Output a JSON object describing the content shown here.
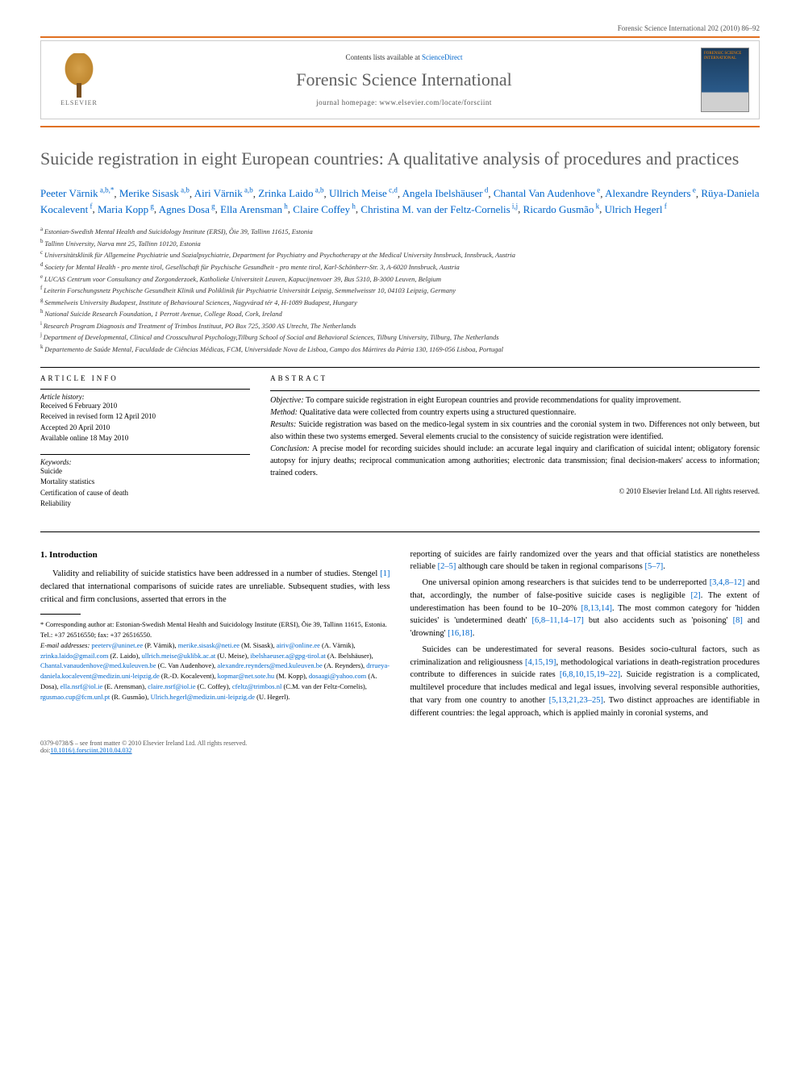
{
  "header_line": "Forensic Science International 202 (2010) 86–92",
  "banner": {
    "elsevier_name": "ELSEVIER",
    "contents_prefix": "Contents lists available at ",
    "contents_link": "ScienceDirect",
    "journal_name": "Forensic Science International",
    "homepage_label": "journal homepage: www.elsevier.com/locate/forsciint",
    "cover_text": "FORENSIC SCIENCE INTERNATIONAL"
  },
  "title": "Suicide registration in eight European countries: A qualitative analysis of procedures and practices",
  "authors": [
    {
      "name": "Peeter Värnik",
      "aff": "a,b,",
      "corr": "*"
    },
    {
      "name": "Merike Sisask",
      "aff": "a,b"
    },
    {
      "name": "Airi Värnik",
      "aff": "a,b"
    },
    {
      "name": "Zrinka Laido",
      "aff": "a,b"
    },
    {
      "name": "Ullrich Meise",
      "aff": "c,d"
    },
    {
      "name": "Angela Ibelshäuser",
      "aff": "d"
    },
    {
      "name": "Chantal Van Audenhove",
      "aff": "e"
    },
    {
      "name": "Alexandre Reynders",
      "aff": "e"
    },
    {
      "name": "Rüya-Daniela Kocalevent",
      "aff": "f"
    },
    {
      "name": "Maria Kopp",
      "aff": "g"
    },
    {
      "name": "Agnes Dosa",
      "aff": "g"
    },
    {
      "name": "Ella Arensman",
      "aff": "h"
    },
    {
      "name": "Claire Coffey",
      "aff": "h"
    },
    {
      "name": "Christina M. van der Feltz-Cornelis",
      "aff": "i,j"
    },
    {
      "name": "Ricardo Gusmão",
      "aff": "k"
    },
    {
      "name": "Ulrich Hegerl",
      "aff": "f"
    }
  ],
  "affiliations": [
    {
      "sup": "a",
      "text": "Estonian-Swedish Mental Health and Suicidology Institute (ERSI), Õie 39, Tallinn 11615, Estonia"
    },
    {
      "sup": "b",
      "text": "Tallinn University, Narva mnt 25, Tallinn 10120, Estonia"
    },
    {
      "sup": "c",
      "text": "Universitätsklinik für Allgemeine Psychiatrie und Sozialpsychiatrie, Department for Psychiatry and Psychotherapy at the Medical University Innsbruck, Innsbruck, Austria"
    },
    {
      "sup": "d",
      "text": "Society for Mental Health - pro mente tirol, Gesellschaft für Psychische Gesundheit - pro mente tirol, Karl-Schönherr-Str. 3, A-6020 Innsbruck, Austria"
    },
    {
      "sup": "e",
      "text": "LUCAS Centrum voor Consultancy and Zorgonderzoek, Katholieke Universiteit Leuven, Kapucijnenvoer 39, Bus 5310, B-3000 Leuven, Belgium"
    },
    {
      "sup": "f",
      "text": "Leiterin Forschungsnetz Psychische Gesundheit Klinik und Poliklinik für Psychiatrie Universität Leipzig, Semmelweisstr 10, 04103 Leipzig, Germany"
    },
    {
      "sup": "g",
      "text": "Semmelweis University Budapest, Institute of Behavioural Sciences, Nagyvárad tér 4, H-1089 Budapest, Hungary"
    },
    {
      "sup": "h",
      "text": "National Suicide Research Foundation, 1 Perrott Avenue, College Road, Cork, Ireland"
    },
    {
      "sup": "i",
      "text": "Research Program Diagnosis and Treatment of Trimbos Instituut, PO Box 725, 3500 AS Utrecht, The Netherlands"
    },
    {
      "sup": "j",
      "text": "Department of Developmental, Clinical and Crosscultural Psychology,Tilburg School of Social and Behavioral Sciences, Tilburg University, Tilburg, The Netherlands"
    },
    {
      "sup": "k",
      "text": "Departemento de Saúde Mental, Faculdade de Ciências Médicas, FCM, Universidade Nova de Lisboa, Campo dos Mártires da Pátria 130, 1169-056 Lisboa, Portugal"
    }
  ],
  "article_info": {
    "heading": "ARTICLE INFO",
    "history_label": "Article history:",
    "history": [
      "Received 6 February 2010",
      "Received in revised form 12 April 2010",
      "Accepted 20 April 2010",
      "Available online 18 May 2010"
    ],
    "keywords_label": "Keywords:",
    "keywords": [
      "Suicide",
      "Mortality statistics",
      "Certification of cause of death",
      "Reliability"
    ]
  },
  "abstract": {
    "heading": "ABSTRACT",
    "parts": [
      {
        "label": "Objective:",
        "text": " To compare suicide registration in eight European countries and provide recommendations for quality improvement."
      },
      {
        "label": "Method:",
        "text": " Qualitative data were collected from country experts using a structured questionnaire."
      },
      {
        "label": "Results:",
        "text": " Suicide registration was based on the medico-legal system in six countries and the coronial system in two. Differences not only between, but also within these two systems emerged. Several elements crucial to the consistency of suicide registration were identified."
      },
      {
        "label": "Conclusion:",
        "text": " A precise model for recording suicides should include: an accurate legal inquiry and clarification of suicidal intent; obligatory forensic autopsy for injury deaths; reciprocal communication among authorities; electronic data transmission; final decision-makers' access to information; trained coders."
      }
    ],
    "copyright": "© 2010 Elsevier Ireland Ltd. All rights reserved."
  },
  "section1": {
    "heading": "1. Introduction",
    "para1_a": "Validity and reliability of suicide statistics have been addressed in a number of studies. Stengel ",
    "ref1": "[1]",
    "para1_b": " declared that international comparisons of suicide rates are unreliable. Subsequent studies, with less critical and firm conclusions, asserted that errors in the ",
    "para1_c": "reporting of suicides are fairly randomized over the years and that official statistics are nonetheless reliable ",
    "ref2_5": "[2–5]",
    "para1_d": " although care should be taken in regional comparisons ",
    "ref5_7": "[5–7]",
    "para1_e": ".",
    "para2_a": "One universal opinion among researchers is that suicides tend to be underreported ",
    "ref_p2a": "[3,4,8–12]",
    "para2_b": " and that, accordingly, the number of false-positive suicide cases is negligible ",
    "ref_p2b": "[2]",
    "para2_c": ". The extent of underestimation has been found to be 10–20% ",
    "ref_p2c": "[8,13,14]",
    "para2_d": ". The most common category for 'hidden suicides' is 'undetermined death' ",
    "ref_p2d": "[6,8–11,14–17]",
    "para2_e": " but also accidents such as 'poisoning' ",
    "ref_p2e": "[8]",
    "para2_f": " and 'drowning' ",
    "ref_p2f": "[16,18]",
    "para2_g": ".",
    "para3_a": "Suicides can be underestimated for several reasons. Besides socio-cultural factors, such as criminalization and religiousness ",
    "ref_p3a": "[4,15,19]",
    "para3_b": ", methodological variations in death-registration procedures contribute to differences in suicide rates ",
    "ref_p3b": "[6,8,10,15,19–22]",
    "para3_c": ". Suicide registration is a complicated, multilevel procedure that includes medical and legal issues, involving several responsible authorities, that vary from one country to another ",
    "ref_p3c": "[5,13,21,23–25]",
    "para3_d": ". Two distinct approaches are identifiable in different countries: the legal approach, which is applied mainly in coronial systems, and"
  },
  "footnotes": {
    "corr_text": "* Corresponding author at: Estonian-Swedish Mental Health and Suicidology Institute (ERSI), Õie 39, Tallinn 11615, Estonia. Tel.: +37 26516550; fax: +37 26516550.",
    "email_label": "E-mail addresses:",
    "emails": [
      {
        "addr": "peeterv@uninet.ee",
        "who": "(P. Värnik)"
      },
      {
        "addr": "merike.sisask@neti.ee",
        "who": "(M. Sisask)"
      },
      {
        "addr": "airiv@online.ee",
        "who": "(A. Värnik)"
      },
      {
        "addr": "zrinka.laido@gmail.com",
        "who": "(Z. Laido)"
      },
      {
        "addr": "ullrich.meise@uklibk.ac.at",
        "who": "(U. Meise)"
      },
      {
        "addr": "ibelshaeuser.a@gpg-tirol.at",
        "who": "(A. Ibelshäuser)"
      },
      {
        "addr": "Chantal.vanaudenhove@med.kuleuven.be",
        "who": "(C. Van Audenhove)"
      },
      {
        "addr": "alexandre.reynders@med.kuleuven.be",
        "who": "(A. Reynders)"
      },
      {
        "addr": "drrueya-daniela.kocalevent@medizin.uni-leipzig.de",
        "who": "(R.-D. Kocalevent)"
      },
      {
        "addr": "kopmar@net.sote.hu",
        "who": "(M. Kopp)"
      },
      {
        "addr": "dosaagi@yahoo.com",
        "who": "(A. Dosa)"
      },
      {
        "addr": "ella.nsrf@iol.ie",
        "who": "(E. Arensman)"
      },
      {
        "addr": "claire.nsrf@iol.ie",
        "who": "(C. Coffey)"
      },
      {
        "addr": "cfeltz@trimbos.nl",
        "who": "(C.M. van der Feltz-Cornelis)"
      },
      {
        "addr": "rgusmao.cup@fcm.unl.pt",
        "who": "(R. Gusmão)"
      },
      {
        "addr": "Ulrich.hegerl@medizin.uni-leipzig.de",
        "who": "(U. Hegerl)"
      }
    ]
  },
  "bottom": {
    "left_line1": "0379-0738/$ – see front matter © 2010 Elsevier Ireland Ltd. All rights reserved.",
    "left_line2_prefix": "doi:",
    "doi": "10.1016/j.forsciint.2010.04.032"
  },
  "colors": {
    "orange_bar": "#e07020",
    "link": "#0066cc",
    "title_gray": "#606060",
    "text": "#000000"
  }
}
